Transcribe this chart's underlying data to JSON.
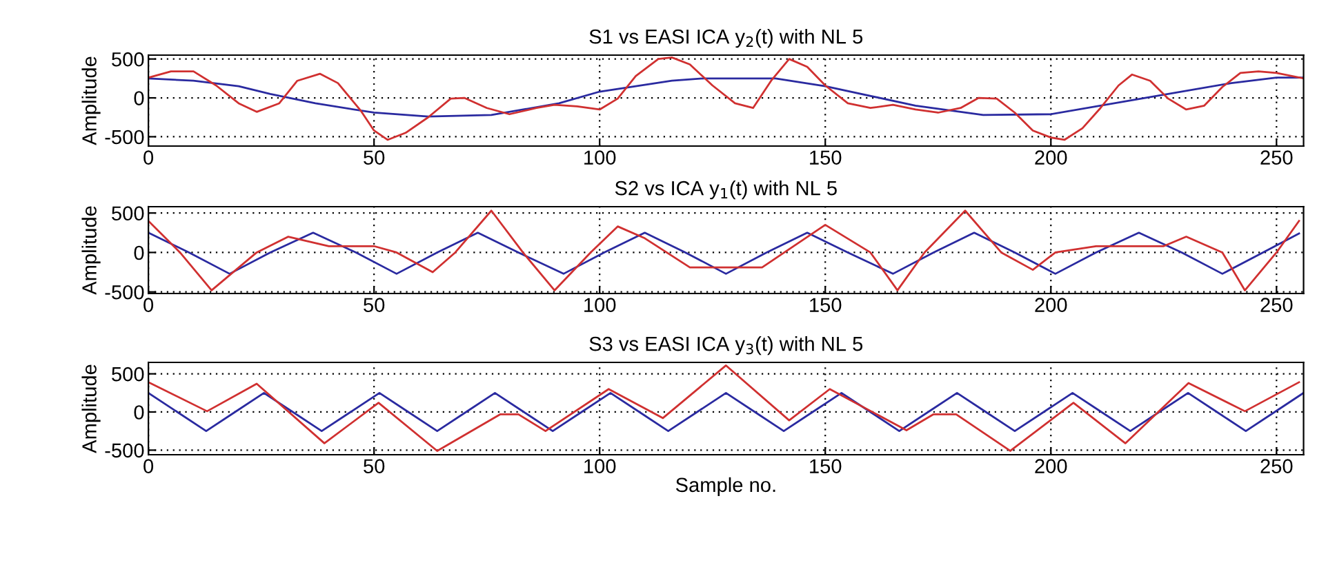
{
  "chart_data": [
    {
      "type": "line",
      "title": "S1 vs EASI ICA y$_{2}$(t) with NL 5",
      "ylabel": "Amplitude",
      "xlim": [
        0,
        256
      ],
      "ylim": [
        -620,
        550
      ],
      "xticks": [
        0,
        50,
        100,
        150,
        200,
        250
      ],
      "yticks": [
        -500,
        0,
        500
      ],
      "grid": true,
      "line_style": "solid",
      "marker": "none",
      "series": [
        {
          "color": "#2a2aa0",
          "x": [
            0,
            10,
            20,
            27,
            37,
            50,
            62,
            76,
            91,
            100,
            116,
            123,
            139,
            150,
            170,
            185,
            200,
            220,
            240,
            250,
            256
          ],
          "values": [
            250,
            220,
            150,
            50,
            -70,
            -190,
            -240,
            -220,
            -70,
            80,
            220,
            250,
            250,
            150,
            -100,
            -220,
            -210,
            -10,
            190,
            260,
            260
          ]
        },
        {
          "color": "#d03030",
          "x": [
            0,
            5,
            10,
            15,
            20,
            24,
            29,
            33,
            38,
            42,
            47,
            50,
            53,
            57,
            62,
            67,
            70,
            75,
            80,
            86,
            90,
            95,
            100,
            104,
            108,
            113,
            116,
            120,
            125,
            130,
            134,
            138,
            142,
            146,
            150,
            155,
            160,
            165,
            170,
            175,
            180,
            184,
            188,
            192,
            196,
            200,
            203,
            207,
            211,
            215,
            218,
            222,
            226,
            230,
            234,
            238,
            242,
            246,
            250,
            256
          ],
          "values": [
            260,
            340,
            340,
            160,
            -70,
            -180,
            -70,
            220,
            310,
            190,
            -160,
            -420,
            -540,
            -450,
            -250,
            -10,
            0,
            -130,
            -210,
            -130,
            -90,
            -110,
            -150,
            -10,
            280,
            500,
            520,
            430,
            160,
            -70,
            -130,
            220,
            500,
            400,
            160,
            -70,
            -130,
            -90,
            -150,
            -190,
            -130,
            0,
            -10,
            -190,
            -420,
            -510,
            -540,
            -390,
            -130,
            160,
            300,
            220,
            -10,
            -150,
            -100,
            140,
            320,
            340,
            320,
            250
          ]
        }
      ]
    },
    {
      "type": "line",
      "title": "S2 vs ICA y$_{1}$(t) with NL 5",
      "ylabel": "Amplitude",
      "xlim": [
        0,
        256
      ],
      "ylim": [
        -520,
        580
      ],
      "xticks": [
        0,
        50,
        100,
        150,
        200,
        250
      ],
      "yticks": [
        -500,
        0,
        500
      ],
      "grid": true,
      "line_style": "solid",
      "marker": "none",
      "series": [
        {
          "color": "#2a2aa0",
          "x": [
            0,
            9,
            18,
            27,
            36.5,
            46,
            55,
            64,
            73,
            82,
            92,
            101,
            110,
            119,
            128,
            137,
            146,
            155,
            165,
            174,
            183,
            192,
            201,
            210,
            219.5,
            229,
            238,
            247,
            255
          ],
          "values": [
            250,
            0,
            -270,
            0,
            250,
            0,
            -270,
            0,
            250,
            0,
            -270,
            0,
            250,
            0,
            -270,
            0,
            250,
            0,
            -270,
            0,
            250,
            0,
            -270,
            0,
            250,
            0,
            -270,
            0,
            240
          ]
        },
        {
          "color": "#d03030",
          "x": [
            0,
            7,
            14,
            24,
            31,
            40,
            50,
            55,
            63,
            68,
            76,
            83,
            90,
            98,
            104,
            110,
            120,
            136,
            150,
            160,
            166,
            172,
            181,
            189,
            196,
            201,
            210,
            225,
            230,
            238,
            243,
            250,
            255
          ],
          "values": [
            400,
            0,
            -480,
            0,
            200,
            80,
            80,
            0,
            -250,
            0,
            530,
            0,
            -480,
            0,
            330,
            180,
            -190,
            -190,
            350,
            0,
            -480,
            0,
            530,
            0,
            -220,
            0,
            80,
            80,
            200,
            0,
            -480,
            0,
            400
          ]
        }
      ]
    },
    {
      "type": "line",
      "title": "S3 vs EASI ICA y$_{3}$(t) with NL 5",
      "xlabel": "Sample no.",
      "ylabel": "Amplitude",
      "xlim": [
        0,
        256
      ],
      "ylim": [
        -560,
        650
      ],
      "xticks": [
        0,
        50,
        100,
        150,
        200,
        250
      ],
      "yticks": [
        -500,
        0,
        500
      ],
      "grid": true,
      "line_style": "solid",
      "marker": "none",
      "series": [
        {
          "color": "#2a2aa0",
          "x": [
            0,
            6.4,
            12.8,
            19.2,
            25.6,
            32,
            38.4,
            44.8,
            51.2,
            57.6,
            64,
            70.4,
            76.8,
            83.2,
            89.6,
            96,
            102.4,
            108.8,
            115.2,
            121.6,
            128,
            134.4,
            140.8,
            147.2,
            153.6,
            160,
            166.4,
            172.8,
            179.2,
            185.6,
            192,
            198.4,
            204.8,
            211.2,
            217.6,
            224,
            230.4,
            236.8,
            243.2,
            249.6,
            256
          ],
          "values": [
            250,
            0,
            -250,
            0,
            250,
            0,
            -250,
            0,
            250,
            0,
            -250,
            0,
            250,
            0,
            -250,
            0,
            250,
            0,
            -250,
            0,
            250,
            0,
            -250,
            0,
            250,
            0,
            -250,
            0,
            250,
            0,
            -250,
            0,
            250,
            0,
            -250,
            0,
            250,
            0,
            -250,
            0,
            250
          ]
        },
        {
          "color": "#d03030",
          "x": [
            0,
            13,
            24,
            39,
            51,
            64,
            78,
            82,
            88,
            102,
            114,
            128,
            142,
            151,
            168,
            174,
            179,
            191,
            205,
            216.5,
            230.5,
            243,
            255
          ],
          "values": [
            390,
            10,
            370,
            -410,
            120,
            -510,
            -30,
            -30,
            -250,
            300,
            -80,
            610,
            -110,
            300,
            -240,
            -30,
            -30,
            -510,
            120,
            -410,
            380,
            10,
            390
          ]
        }
      ]
    }
  ]
}
